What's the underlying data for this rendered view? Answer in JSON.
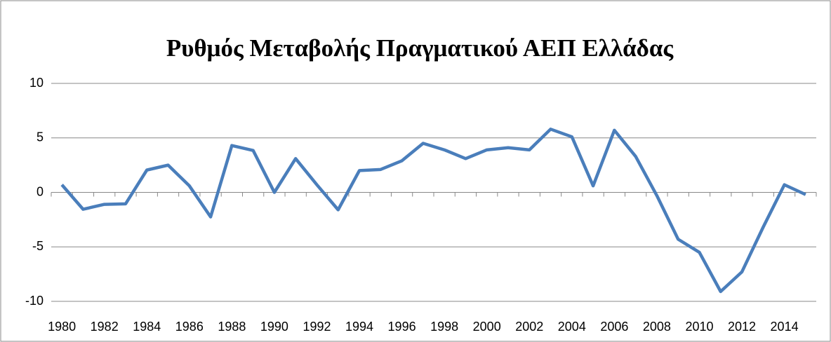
{
  "chart_data": {
    "type": "line",
    "title": "Ρυθμός Μεταβολής Πραγματικού ΑΕΠ Ελλάδας",
    "categories": [
      "1980",
      null,
      "1982",
      null,
      "1984",
      null,
      "1986",
      null,
      "1988",
      null,
      "1990",
      null,
      "1992",
      null,
      "1994",
      null,
      "1996",
      null,
      "1998",
      null,
      "2000",
      null,
      "2002",
      null,
      "2004",
      null,
      "2006",
      null,
      "2008",
      null,
      "2010",
      null,
      "2012",
      null,
      "2014",
      null
    ],
    "series": [
      {
        "name": "Ρυθμός Μεταβολής Πραγματικού ΑΕΠ Ελλάδας",
        "color": "#4a7ebb",
        "values": [
          0.7,
          -1.55,
          -1.1,
          -1.05,
          2.05,
          2.5,
          0.6,
          -2.25,
          4.3,
          3.85,
          0.0,
          3.1,
          0.7,
          -1.6,
          2.0,
          2.1,
          2.9,
          4.5,
          3.9,
          3.1,
          3.9,
          4.1,
          3.9,
          5.8,
          5.1,
          0.6,
          5.7,
          3.3,
          -0.3,
          -4.3,
          -5.5,
          -9.1,
          -7.3,
          -3.2,
          0.7,
          -0.2
        ]
      }
    ],
    "ylim": [
      -10,
      10
    ],
    "yticks": [
      -10,
      -5,
      0,
      5,
      10
    ],
    "grid": true
  }
}
